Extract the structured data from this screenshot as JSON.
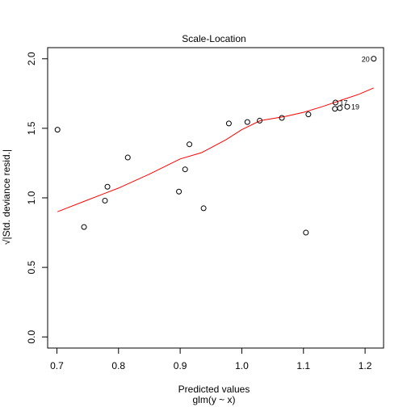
{
  "chart_data": {
    "type": "scatter",
    "title": "Scale-Location",
    "xlabel": "Predicted values",
    "xlabel2": "glm(y ~ x)",
    "ylabel": "√|Std. deviance resid.|",
    "xlim": [
      0.685,
      1.23
    ],
    "ylim": [
      -0.08,
      2.08
    ],
    "xticks": [
      {
        "value": 0.7,
        "label": "0.7"
      },
      {
        "value": 0.8,
        "label": "0.8"
      },
      {
        "value": 0.9,
        "label": "0.9"
      },
      {
        "value": 1.0,
        "label": "1.0"
      },
      {
        "value": 1.1,
        "label": "1.1"
      },
      {
        "value": 1.2,
        "label": "1.2"
      }
    ],
    "yticks": [
      {
        "value": 0.0,
        "label": "0.0"
      },
      {
        "value": 0.5,
        "label": "0.5"
      },
      {
        "value": 1.0,
        "label": "1.0"
      },
      {
        "value": 1.5,
        "label": "1.5"
      },
      {
        "value": 2.0,
        "label": "2.0"
      }
    ],
    "points": [
      {
        "x": 0.701,
        "y": 1.49
      },
      {
        "x": 0.744,
        "y": 0.79
      },
      {
        "x": 0.778,
        "y": 0.98
      },
      {
        "x": 0.782,
        "y": 1.08
      },
      {
        "x": 0.815,
        "y": 1.29
      },
      {
        "x": 0.898,
        "y": 1.045
      },
      {
        "x": 0.908,
        "y": 1.205
      },
      {
        "x": 0.915,
        "y": 1.385
      },
      {
        "x": 0.938,
        "y": 0.925
      },
      {
        "x": 0.979,
        "y": 1.535
      },
      {
        "x": 1.009,
        "y": 1.545
      },
      {
        "x": 1.029,
        "y": 1.555
      },
      {
        "x": 1.065,
        "y": 1.575
      },
      {
        "x": 1.104,
        "y": 0.75
      },
      {
        "x": 1.108,
        "y": 1.6
      },
      {
        "x": 1.151,
        "y": 1.64
      },
      {
        "x": 1.152,
        "y": 1.685,
        "label": "17"
      },
      {
        "x": 1.159,
        "y": 1.645
      },
      {
        "x": 1.171,
        "y": 1.655,
        "label": "19"
      },
      {
        "x": 1.214,
        "y": 2.0,
        "label": "20"
      }
    ],
    "smooth_line": {
      "color": "#ff0000",
      "x": [
        0.701,
        0.75,
        0.8,
        0.85,
        0.9,
        0.935,
        0.975,
        1.0,
        1.03,
        1.07,
        1.1,
        1.13,
        1.16,
        1.19,
        1.214
      ],
      "y": [
        0.9,
        0.985,
        1.07,
        1.17,
        1.28,
        1.325,
        1.42,
        1.49,
        1.555,
        1.585,
        1.615,
        1.655,
        1.7,
        1.745,
        1.79
      ]
    },
    "grid": false
  }
}
